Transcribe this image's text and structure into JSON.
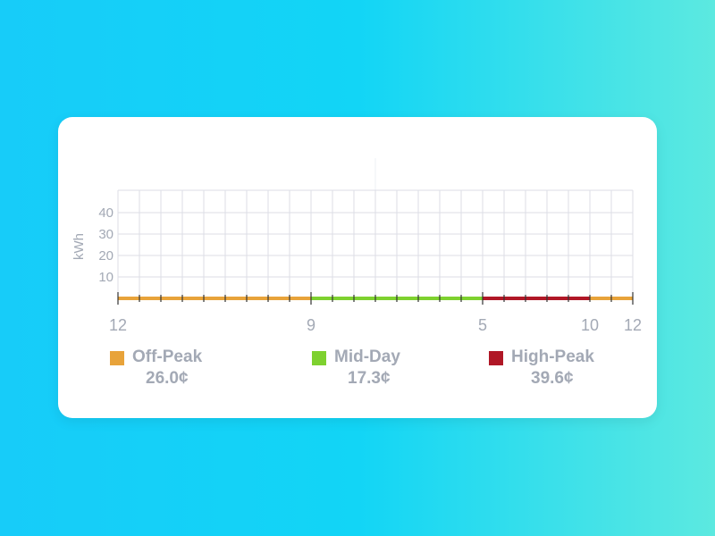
{
  "chart_data": {
    "type": "line",
    "ylabel": "kWh",
    "y_ticks": [
      10,
      20,
      30,
      40
    ],
    "x_tick_labels": [
      "12",
      "9",
      "5",
      "10",
      "12"
    ],
    "grid": true,
    "period_segments": [
      {
        "name": "Off-Peak",
        "start_hour": 0,
        "end_hour": 9,
        "color": "#e8a33a"
      },
      {
        "name": "Mid-Day",
        "start_hour": 9,
        "end_hour": 17,
        "color": "#7ed12f"
      },
      {
        "name": "High-Peak",
        "start_hour": 17,
        "end_hour": 22,
        "color": "#b01726"
      },
      {
        "name": "Off-Peak",
        "start_hour": 22,
        "end_hour": 24,
        "color": "#e8a33a"
      }
    ],
    "series": [
      {
        "values": [
          0,
          0,
          0,
          0,
          0,
          0,
          0,
          0,
          0,
          0,
          0,
          0,
          0,
          0,
          0,
          0,
          0,
          0,
          0,
          0,
          0,
          0,
          0,
          0,
          0
        ]
      }
    ]
  },
  "legend": [
    {
      "name": "Off-Peak",
      "price": "26.0¢",
      "color": "#e8a33a"
    },
    {
      "name": "Mid-Day",
      "price": "17.3¢",
      "color": "#7ed12f"
    },
    {
      "name": "High-Peak",
      "price": "39.6¢",
      "color": "#b01726"
    }
  ]
}
